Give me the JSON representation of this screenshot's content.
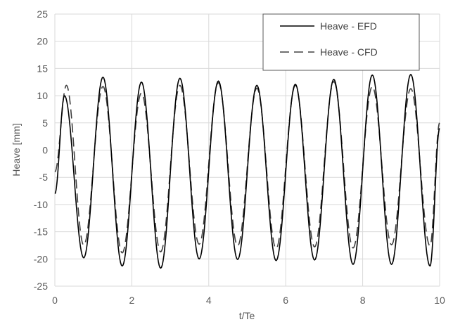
{
  "chart_data": {
    "type": "line",
    "title": "",
    "xlabel": "t/Te",
    "ylabel": "Heave [mm]",
    "xlim": [
      0,
      10
    ],
    "ylim": [
      -25,
      25
    ],
    "x_ticks": [
      0,
      2,
      4,
      6,
      8,
      10
    ],
    "y_ticks": [
      -25,
      -20,
      -15,
      -10,
      -5,
      0,
      5,
      10,
      15,
      20,
      25
    ],
    "grid": "vertical and horizontal major gridlines",
    "legend_position": "top-right",
    "colors": {
      "grid": "#d9d9d9",
      "efd_line": "#000000",
      "cfd_line": "#404040",
      "text": "#595959"
    },
    "series": [
      {
        "name": "Heave - EFD",
        "style": "solid",
        "x": [
          0,
          0.25,
          0.75,
          1.25,
          1.75,
          2.25,
          2.75,
          3.25,
          3.75,
          4.25,
          4.75,
          5.25,
          5.75,
          6.25,
          6.75,
          7.25,
          7.75,
          8.25,
          8.75,
          9.25,
          9.75,
          10
        ],
        "y": [
          -8,
          10,
          -19.8,
          13.4,
          -21.3,
          12.5,
          -21.7,
          13.2,
          -20,
          12.7,
          -20.1,
          11.9,
          -20.3,
          12.1,
          -20.2,
          13,
          -21,
          13.8,
          -21,
          13.9,
          -21.3,
          4
        ]
      },
      {
        "name": "Heave - CFD",
        "style": "dashed",
        "x": [
          0,
          0.3,
          0.75,
          1.25,
          1.75,
          2.25,
          2.75,
          3.25,
          3.75,
          4.25,
          4.75,
          5.25,
          5.75,
          6.25,
          6.75,
          7.25,
          7.75,
          8.25,
          8.75,
          9.25,
          9.75,
          10
        ],
        "y": [
          -4,
          11.9,
          -17.5,
          11.7,
          -18.9,
          10.5,
          -18.7,
          11.9,
          -17.3,
          12.4,
          -17.6,
          11.4,
          -18.1,
          11.9,
          -17.8,
          12.6,
          -18,
          11.7,
          -17.4,
          11.3,
          -17.6,
          5
        ]
      }
    ]
  }
}
